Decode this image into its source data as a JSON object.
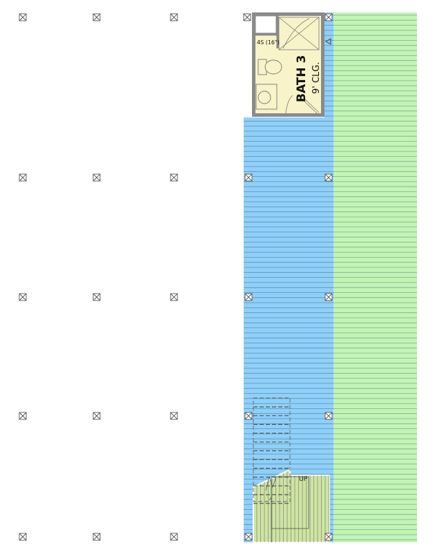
{
  "colors": {
    "porch_blue": "#8fd0fa",
    "deck_green": "#c0f5b6",
    "bath_floor": "#f8f3c8",
    "wall_gray": "#8a8a8a",
    "stair_green": "#cfe3a4",
    "board_line": "#6e8a8a"
  },
  "bath": {
    "name": "BATH 3",
    "ceiling": "9' CLG.",
    "tag": "4S (16\")"
  },
  "stair": {
    "direction_label": "UP"
  },
  "icons": {
    "column": "boxed-x-column-icon"
  }
}
